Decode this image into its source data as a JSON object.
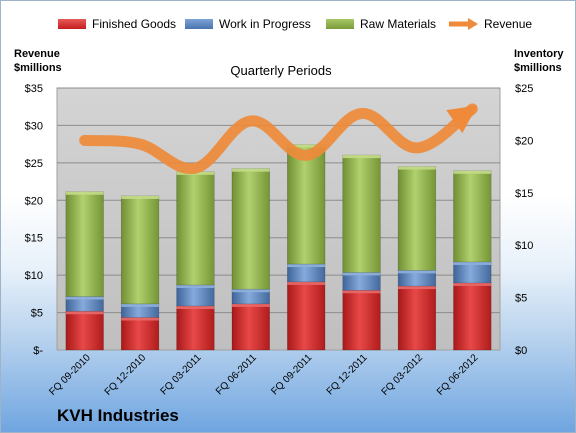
{
  "legend": [
    {
      "label": "Finished Goods",
      "color": "#d42b2b"
    },
    {
      "label": "Work in Progress",
      "color": "#5b86c4"
    },
    {
      "label": "Raw Materials",
      "color": "#8fb24a"
    },
    {
      "label": "Revenue",
      "color": "#ee8a3a"
    }
  ],
  "left_axis_title": [
    "Revenue",
    "$millions"
  ],
  "right_axis_title": [
    "Inventory",
    "$millions"
  ],
  "subtitle": "Quarterly Periods",
  "company": "KVH Industries",
  "chart_data": {
    "type": "bar",
    "stacked": true,
    "categories": [
      "FQ 09-2010",
      "FQ 12-2010",
      "FQ 03-2011",
      "FQ 06-2011",
      "FQ 09-2011",
      "FQ 12-2011",
      "FQ 03-2012",
      "FQ 06-2012"
    ],
    "series": [
      {
        "name": "Finished Goods",
        "axis": "right",
        "color": "#d42b2b",
        "values": [
          3.7,
          3.1,
          4.2,
          4.4,
          6.5,
          5.7,
          6.1,
          6.4
        ]
      },
      {
        "name": "Work in Progress",
        "axis": "right",
        "color": "#5b86c4",
        "values": [
          1.4,
          1.3,
          2.0,
          1.4,
          1.7,
          1.7,
          1.5,
          2.0
        ]
      },
      {
        "name": "Raw Materials",
        "axis": "right",
        "color": "#8fb24a",
        "values": [
          10.0,
          10.3,
          10.8,
          11.5,
          11.4,
          11.2,
          9.9,
          8.7
        ]
      },
      {
        "name": "Revenue",
        "type": "line",
        "axis": "left",
        "color": "#ee8a3a",
        "values": [
          28.0,
          27.5,
          24.3,
          30.6,
          26.0,
          31.6,
          27.0,
          32.2
        ]
      }
    ],
    "left_axis": {
      "ylim": [
        0,
        35
      ],
      "ticks": [
        "$-",
        "$5",
        "$10",
        "$15",
        "$20",
        "$25",
        "$30",
        "$35"
      ]
    },
    "right_axis": {
      "ylim": [
        0,
        25
      ],
      "ticks": [
        "$0",
        "$5",
        "$10",
        "$15",
        "$20",
        "$25"
      ]
    },
    "grid": true,
    "legend_position": "top"
  }
}
